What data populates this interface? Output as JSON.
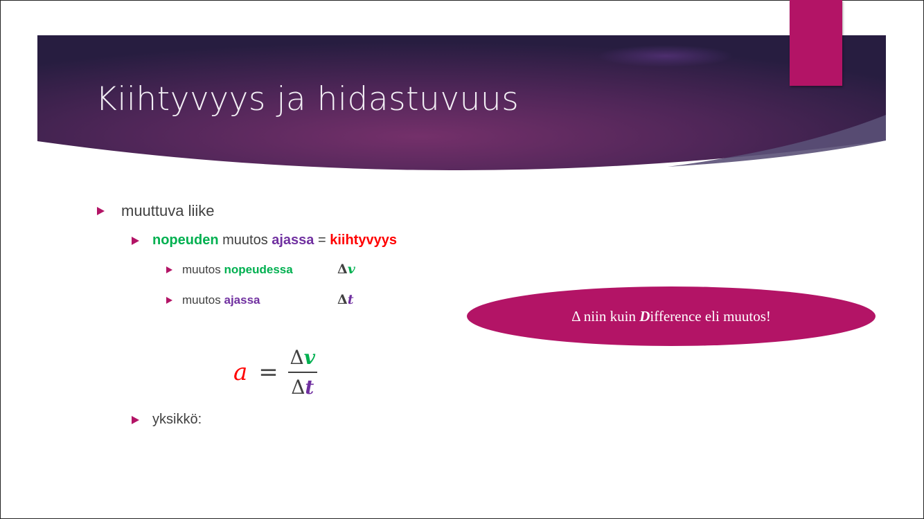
{
  "title": "Kiihtyvyys ja hidastuvuus",
  "colors": {
    "accent": "#b31466",
    "header_dark": "#2b1f45",
    "header_mid": "#6b2c62",
    "green": "#00b050",
    "purple": "#7030a0",
    "red": "#ff0000"
  },
  "bullets": {
    "level1": {
      "text": "muuttuva liike"
    },
    "level2": {
      "part1": "nopeuden",
      "part2": " muutos ",
      "part3": "ajassa",
      "part4": " = ",
      "part5": "kiihtyvyys"
    },
    "sub1": {
      "text": "muutos ",
      "highlight": "nopeudessa",
      "symbol_delta": "Δ",
      "symbol_var": "v"
    },
    "sub2": {
      "text": "muutos ",
      "highlight": "ajassa",
      "symbol_delta": "Δ",
      "symbol_var": "t"
    },
    "unit": {
      "text": "yksikkö:"
    }
  },
  "callout": {
    "delta": "Δ",
    "text1": " niin kuin ",
    "bold_letter": "D",
    "text2": "ifference eli muutos!"
  },
  "formula": {
    "lhs": "a",
    "equals": "=",
    "num_delta": "Δ",
    "num_var": "v",
    "den_delta": "Δ",
    "den_var": "t"
  }
}
